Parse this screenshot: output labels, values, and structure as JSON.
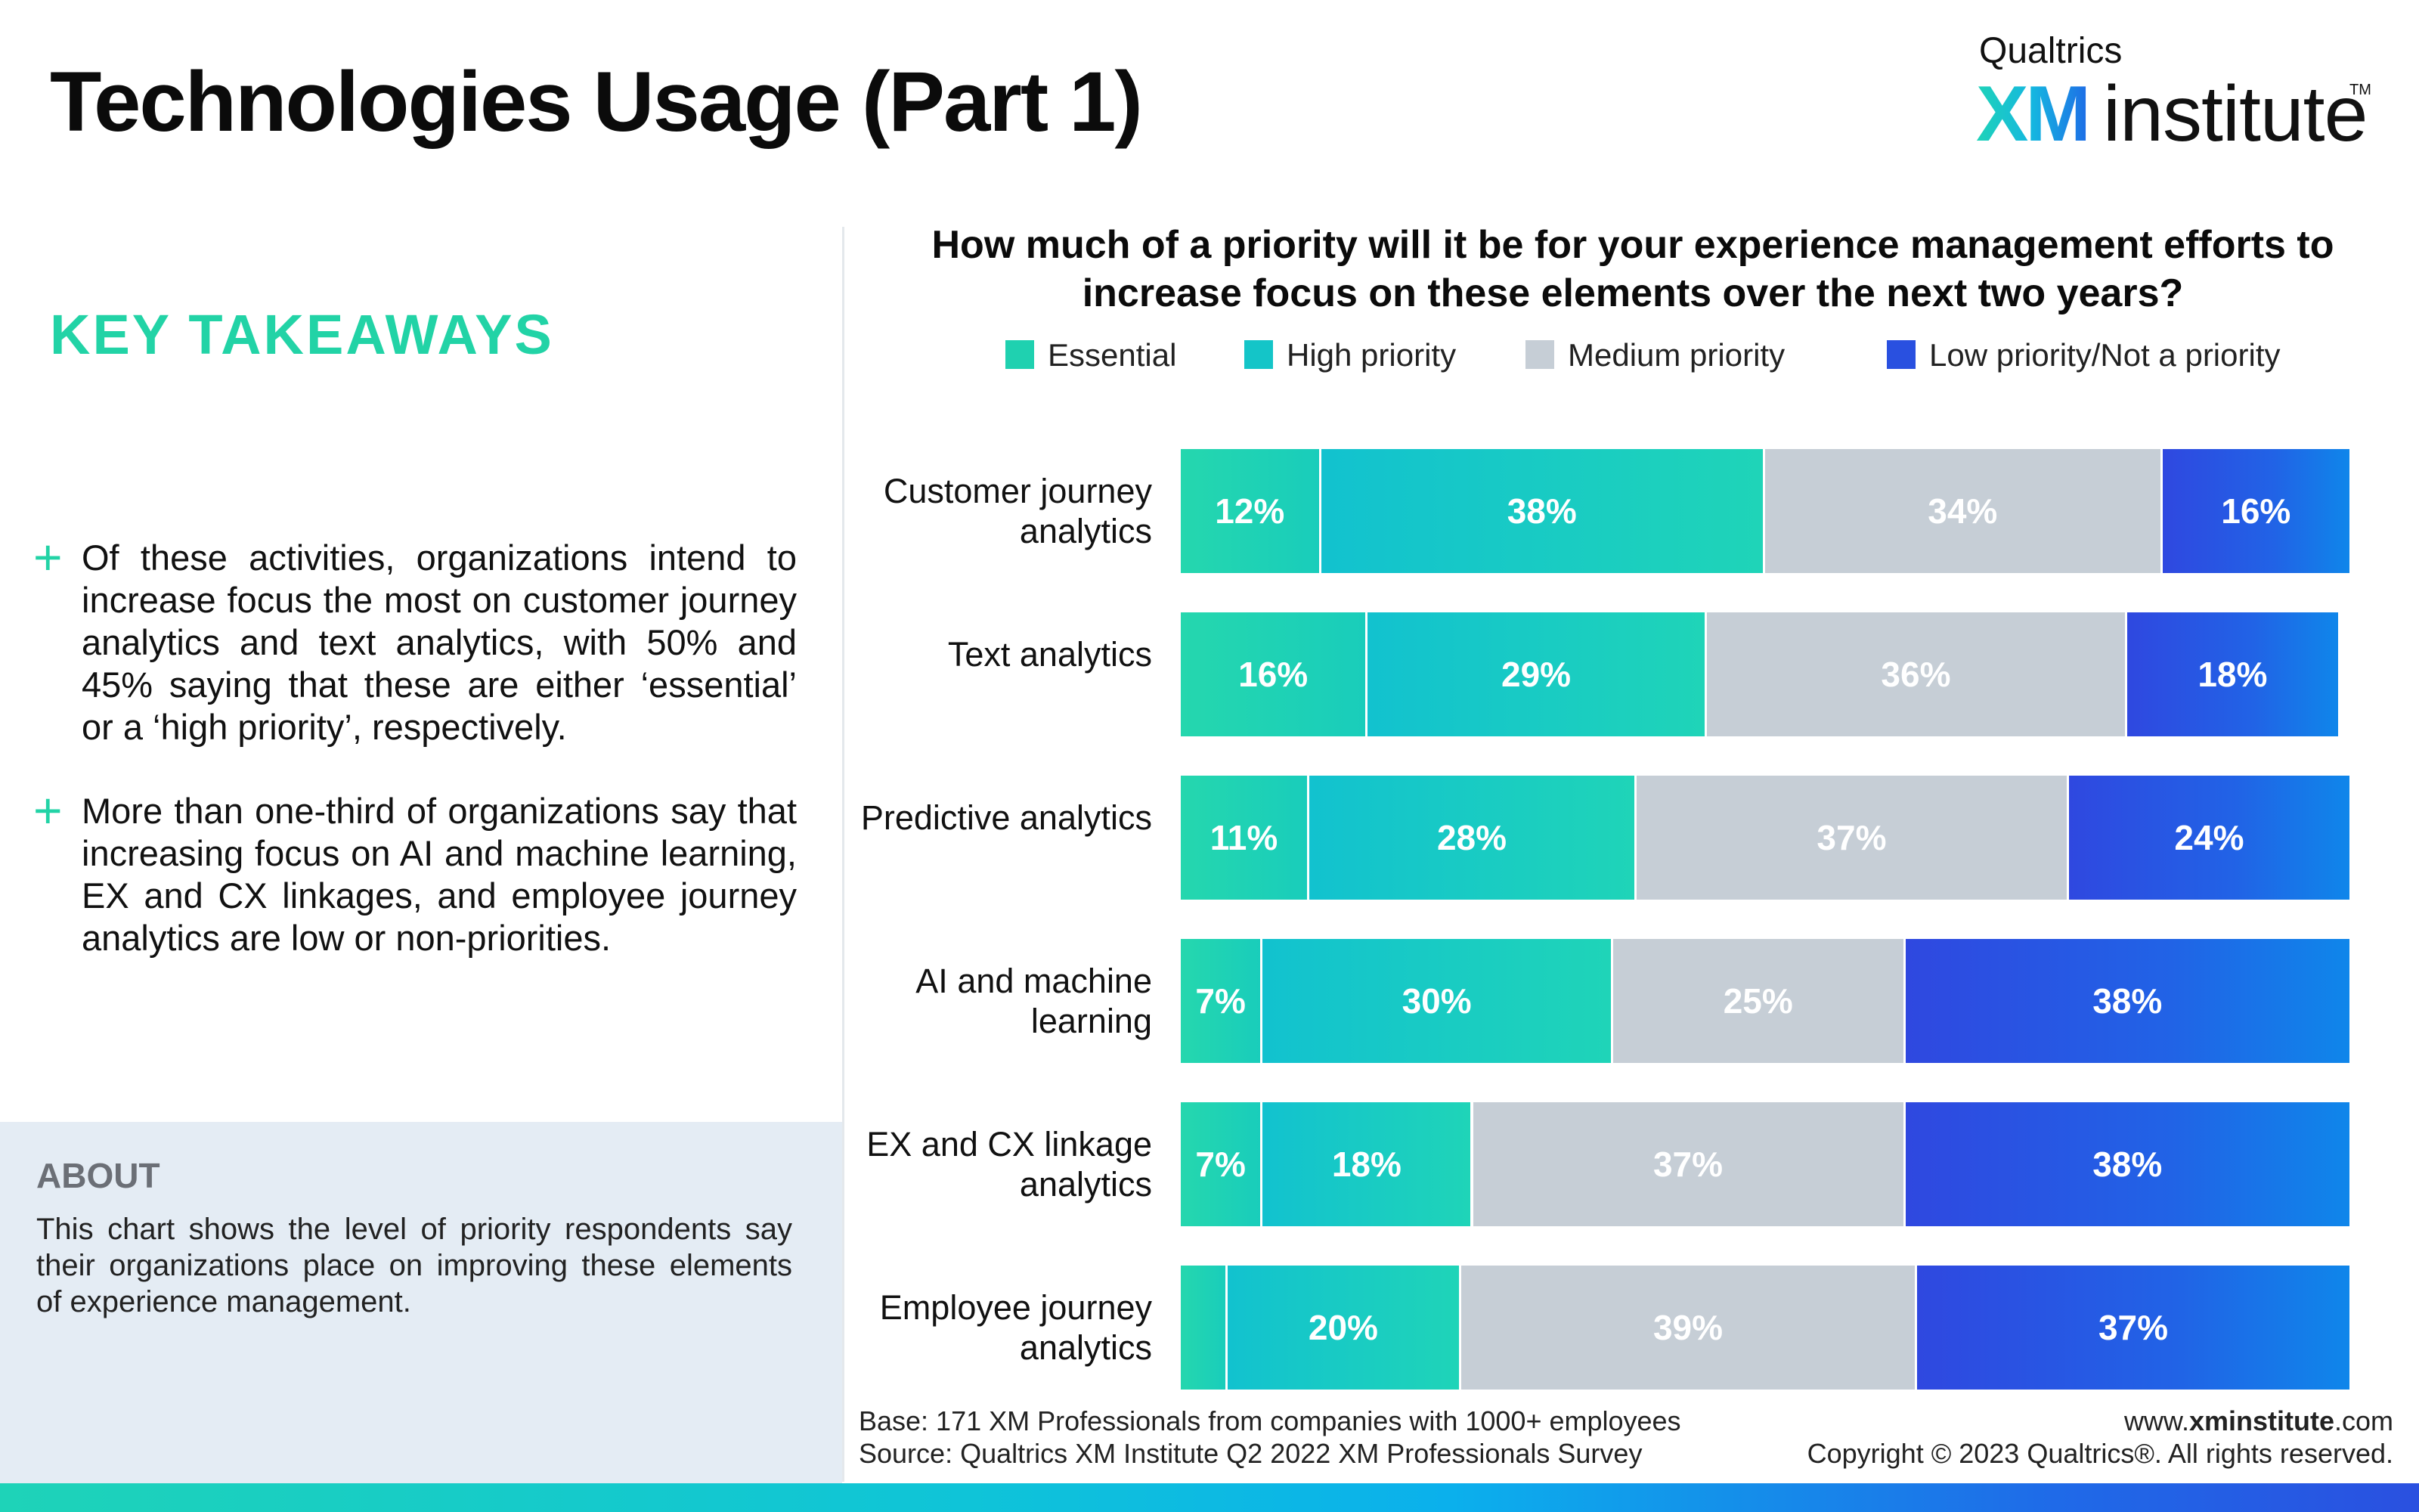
{
  "title": "Technologies Usage (Part 1)",
  "logo": {
    "brand": "Qualtrics",
    "xm": "XM",
    "institute": "institute",
    "tm": "TM"
  },
  "key_takeaways": {
    "heading": "KEY TAKEAWAYS",
    "bullets": [
      "Of these activities, organizations intend to increase focus the most on customer journey analytics and text analytics, with 50% and 45% saying that these are either ‘essential’ or a ‘high priority’, respectively.",
      "More than one-third of organizations say that increasing focus on AI and machine learning, EX and CX linkages, and employee journey analytics are low or non-priorities."
    ],
    "bullet_icon": "plus-icon"
  },
  "about": {
    "heading": "ABOUT",
    "text": "This chart shows the level of priority respondents say their organizations place on improving these elements of experience management."
  },
  "footer": {
    "base": "Base: 171 XM Professionals from companies with 1000+ employees",
    "source": "Source: Qualtrics XM Institute Q2 2022 XM Professionals Survey",
    "website_prefix": "www.",
    "website_bold": "xminstitute",
    "website_suffix": ".com",
    "copyright": "Copyright © 2023 Qualtrics®. All rights reserved."
  },
  "colors": {
    "accent": "#22d3a6",
    "essential": "#1fd1b0",
    "high_priority": "#14c5c8",
    "medium_priority": "#c6ced6",
    "low_priority": "#2950e0"
  },
  "chart_data": {
    "type": "bar",
    "orientation": "horizontal",
    "stacked": true,
    "title": "How much of a priority will it be for your experience management efforts to increase focus on these elements over the next two years?",
    "legend_position": "top",
    "categories": [
      "Customer journey analytics",
      "Text analytics",
      "Predictive analytics",
      "AI and machine learning",
      "EX and CX linkage analytics",
      "Employee journey analytics"
    ],
    "series": [
      {
        "name": "Essential",
        "values": [
          12,
          16,
          11,
          7,
          7,
          4
        ],
        "labels": [
          "12%",
          "16%",
          "11%",
          "7%",
          "7%",
          ""
        ]
      },
      {
        "name": "High priority",
        "values": [
          38,
          29,
          28,
          30,
          18,
          20
        ],
        "labels": [
          "38%",
          "29%",
          "28%",
          "30%",
          "18%",
          "20%"
        ]
      },
      {
        "name": "Medium priority",
        "values": [
          34,
          36,
          37,
          25,
          37,
          39
        ],
        "labels": [
          "34%",
          "36%",
          "37%",
          "25%",
          "37%",
          "39%"
        ]
      },
      {
        "name": "Low priority/Not a priority",
        "values": [
          16,
          18,
          24,
          38,
          38,
          37
        ],
        "labels": [
          "16%",
          "18%",
          "24%",
          "38%",
          "38%",
          "37%"
        ]
      }
    ],
    "xlim": [
      0,
      100
    ]
  }
}
